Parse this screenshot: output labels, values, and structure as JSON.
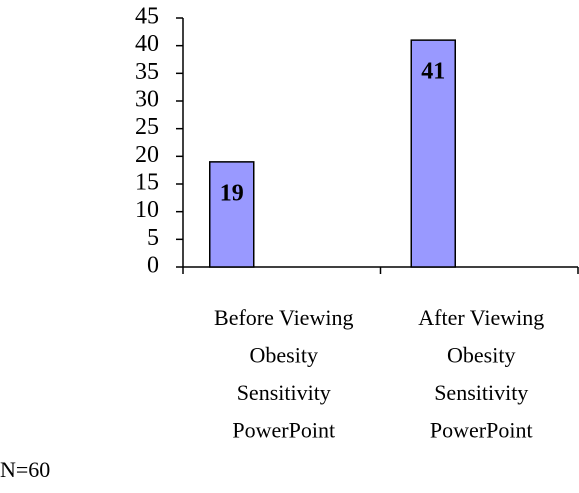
{
  "chart_data": {
    "type": "bar",
    "categories": [
      [
        "Before Viewing",
        "Obesity",
        "Sensitivity",
        "PowerPoint"
      ],
      [
        "After Viewing",
        "Obesity",
        "Sensitivity",
        "PowerPoint"
      ]
    ],
    "values": [
      19,
      41
    ],
    "color": "#9999ff",
    "ylim": [
      0,
      45
    ],
    "yticks": [
      0,
      5,
      10,
      15,
      20,
      25,
      30,
      35,
      40,
      45
    ],
    "annotation": "N=60"
  }
}
